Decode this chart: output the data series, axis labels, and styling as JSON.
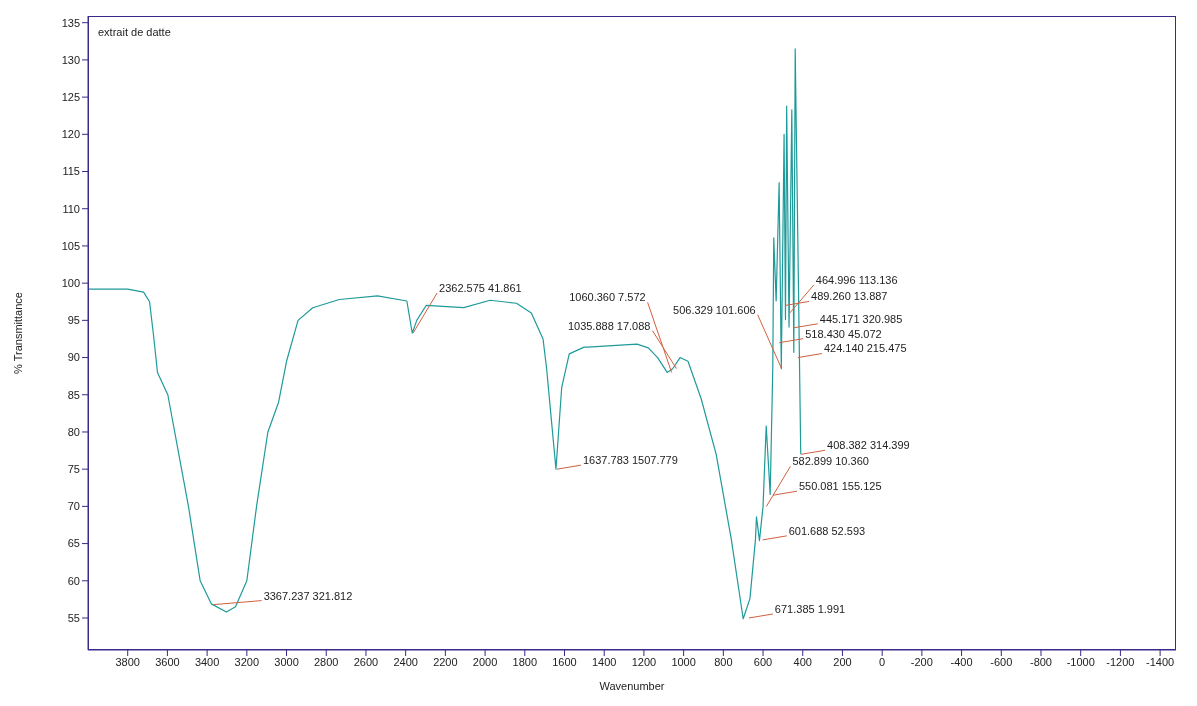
{
  "chart_data": {
    "type": "line",
    "title": "extrait de datte",
    "xlabel": "Wavenumber",
    "ylabel": "% Transmittance",
    "x": [
      4000,
      3800,
      3720,
      3690,
      3670,
      3650,
      3598,
      3494,
      3435,
      3379,
      3303,
      3257,
      3200,
      3151,
      3094,
      3040,
      3000,
      2942,
      2868,
      2734,
      2542,
      2394,
      2367,
      2344,
      2297,
      2107,
      1975,
      1842,
      1767,
      1708,
      1690,
      1643,
      1614,
      1576,
      1501,
      1481,
      1235,
      1178,
      1131,
      1083,
      1055,
      1018,
      978,
      912,
      836,
      760,
      700,
      666,
      638,
      633,
      618,
      600,
      584,
      564,
      551,
      546,
      534,
      519,
      508,
      494,
      487,
      481,
      469,
      455,
      445,
      438,
      410
    ],
    "series": [
      {
        "color": "#1f9a9a",
        "values": [
          99.2,
          99.2,
          98.8,
          97.5,
          93,
          88,
          85,
          70,
          60,
          56.9,
          55.8,
          56.5,
          60,
          70,
          80,
          84,
          89.5,
          95,
          96.7,
          97.8,
          98.3,
          97.6,
          93.3,
          95,
          97,
          96.7,
          97.7,
          97.3,
          96,
          92.5,
          88.5,
          75,
          86,
          90.5,
          91.4,
          91.4,
          91.8,
          91.3,
          90,
          88,
          88.5,
          90,
          89.5,
          84.5,
          77,
          65.6,
          54.9,
          57.6,
          65.6,
          68.6,
          65.4,
          70,
          80.8,
          71.6,
          88.5,
          106.1,
          97.6,
          113.5,
          88.5,
          120,
          95.1,
          123.8,
          94.1,
          123.3,
          90.7,
          131.5,
          77
        ]
      }
    ],
    "annotations": [
      {
        "text": "3367.237  321.812",
        "x": 3367.237,
        "y": 56.8
      },
      {
        "text": "2362.575  41.861",
        "x": 2362.575,
        "y": 93.3
      },
      {
        "text": "1637.783  1507.779",
        "x": 1637.783,
        "y": 75
      },
      {
        "text": "1035.888  17.088",
        "x": 1035.888,
        "y": 88.5
      },
      {
        "text": "1060.360  7.572",
        "x": 1060.36,
        "y": 88
      },
      {
        "text": "671.385  1.991",
        "x": 671.385,
        "y": 55
      },
      {
        "text": "601.688  52.593",
        "x": 601.688,
        "y": 65.5
      },
      {
        "text": "582.899  10.360",
        "x": 582.899,
        "y": 70
      },
      {
        "text": "550.081  155.125",
        "x": 550.081,
        "y": 71.5
      },
      {
        "text": "408.382  314.399",
        "x": 408.382,
        "y": 77
      },
      {
        "text": "506.329  101.606",
        "x": 506.329,
        "y": 88.5
      },
      {
        "text": "424.140  215.475",
        "x": 424.14,
        "y": 90
      },
      {
        "text": "518.430  45.072",
        "x": 518.43,
        "y": 92
      },
      {
        "text": "445.171  320.985",
        "x": 445.171,
        "y": 94
      },
      {
        "text": "464.996  113.136",
        "x": 464.996,
        "y": 96
      },
      {
        "text": "489.260  13.887",
        "x": 489.26,
        "y": 97
      }
    ],
    "xlim": [
      4000,
      -1480
    ],
    "ylim": [
      50.7,
      135.9
    ],
    "xticks": [
      3800,
      3600,
      3400,
      3200,
      3000,
      2800,
      2600,
      2400,
      2200,
      2000,
      1800,
      1600,
      1400,
      1200,
      1000,
      800,
      600,
      400,
      200,
      0,
      -200,
      -400,
      -600,
      -800,
      -1000,
      -1200,
      -1400
    ],
    "yticks": [
      55,
      60,
      65,
      70,
      75,
      80,
      85,
      90,
      95,
      100,
      105,
      110,
      115,
      120,
      125,
      130,
      135
    ],
    "grid": false,
    "legend": false,
    "marker": "none",
    "line_style": "solid"
  }
}
